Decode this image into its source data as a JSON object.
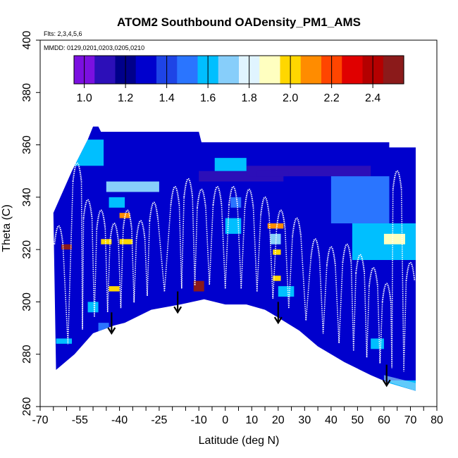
{
  "chart_data": {
    "type": "heatmap",
    "title": "ATOM2 Southbound OADensity_PM1_AMS",
    "subtitle_flights": "Flts: 2,3,4,5,6",
    "subtitle_dates": "MMDD: 0129,0201,0203,0205,0210",
    "xlabel": "Latitude (deg N)",
    "ylabel": "Theta (C)",
    "xlim": [
      -70,
      80
    ],
    "ylim": [
      260,
      400
    ],
    "x_ticks": [
      -70,
      -55,
      -40,
      -25,
      -10,
      0,
      10,
      20,
      30,
      40,
      50,
      60,
      70,
      80
    ],
    "x_minor_ticks": [
      -65,
      -60,
      -50,
      -45,
      -35,
      -30,
      -20,
      -15,
      -5,
      5,
      15,
      25,
      35,
      45,
      55,
      65,
      75
    ],
    "y_ticks": [
      260,
      280,
      300,
      320,
      340,
      360,
      380,
      400
    ],
    "colorbar": {
      "range": [
        0.95,
        2.55
      ],
      "ticks": [
        1.0,
        1.2,
        1.4,
        1.6,
        1.8,
        2.0,
        2.2,
        2.4
      ],
      "tick_labels": [
        "1.0",
        "1.2",
        "1.4",
        "1.6",
        "1.8",
        "2.0",
        "2.2",
        "2.4"
      ],
      "colors": [
        "#7b10e0",
        "#2c0fb8",
        "#00008b",
        "#0000cd",
        "#1e44e6",
        "#2a75ff",
        "#00bfff",
        "#87cefa",
        "#e0f4ff",
        "#ffffc0",
        "#ffd700",
        "#ff8c00",
        "#ff4500",
        "#e00000",
        "#b40000",
        "#8b1a1a"
      ]
    },
    "background_value": 1.25,
    "terrain_floor": [
      {
        "x": -64,
        "y": 274
      },
      {
        "x": -57,
        "y": 280
      },
      {
        "x": -50,
        "y": 288
      },
      {
        "x": -42,
        "y": 291
      },
      {
        "x": -38,
        "y": 292
      },
      {
        "x": -28,
        "y": 297
      },
      {
        "x": -17,
        "y": 299
      },
      {
        "x": -8,
        "y": 301
      },
      {
        "x": 0,
        "y": 299
      },
      {
        "x": 8,
        "y": 299
      },
      {
        "x": 15,
        "y": 297
      },
      {
        "x": 20,
        "y": 294
      },
      {
        "x": 28,
        "y": 289
      },
      {
        "x": 35,
        "y": 283
      },
      {
        "x": 45,
        "y": 277
      },
      {
        "x": 55,
        "y": 272
      },
      {
        "x": 62,
        "y": 269
      },
      {
        "x": 72,
        "y": 266
      }
    ],
    "data_ceiling": [
      {
        "x": -65,
        "y": 334
      },
      {
        "x": -58,
        "y": 350
      },
      {
        "x": -52,
        "y": 362
      },
      {
        "x": -50,
        "y": 367
      },
      {
        "x": -48,
        "y": 367
      },
      {
        "x": -47,
        "y": 365
      },
      {
        "x": -10,
        "y": 365
      },
      {
        "x": -9,
        "y": 361
      },
      {
        "x": 62,
        "y": 361
      },
      {
        "x": 62,
        "y": 359
      },
      {
        "x": 72,
        "y": 359
      },
      {
        "x": 72,
        "y": 268
      }
    ],
    "patches": [
      {
        "x0": -58,
        "x1": -46,
        "y0": 352,
        "y1": 362,
        "v": 1.6
      },
      {
        "x0": -45,
        "x1": -25,
        "y0": 342,
        "y1": 346,
        "v": 1.65
      },
      {
        "x0": -44,
        "x1": -38,
        "y0": 336,
        "y1": 340,
        "v": 1.55
      },
      {
        "x0": -40,
        "x1": -36,
        "y0": 332,
        "y1": 334,
        "v": 2.05
      },
      {
        "x0": -47,
        "x1": -43,
        "y0": 322,
        "y1": 324,
        "v": 2.0
      },
      {
        "x0": -40,
        "x1": -35,
        "y0": 322,
        "y1": 324,
        "v": 2.0
      },
      {
        "x0": -62,
        "x1": -58,
        "y0": 320,
        "y1": 322,
        "v": 2.5
      },
      {
        "x0": -44,
        "x1": -40,
        "y0": 304,
        "y1": 306,
        "v": 2.0
      },
      {
        "x0": -52,
        "x1": -48,
        "y0": 296,
        "y1": 300,
        "v": 1.55
      },
      {
        "x0": -48,
        "x1": -44,
        "y0": 288,
        "y1": 292,
        "v": 1.5
      },
      {
        "x0": -64,
        "x1": -58,
        "y0": 284,
        "y1": 286,
        "v": 1.6
      },
      {
        "x0": -12,
        "x1": -8,
        "y0": 304,
        "y1": 308,
        "v": 2.45
      },
      {
        "x0": -10,
        "x1": 22,
        "y0": 346,
        "y1": 350,
        "v": 1.15
      },
      {
        "x0": 8,
        "x1": 55,
        "y0": 348,
        "y1": 352,
        "v": 1.15
      },
      {
        "x0": -4,
        "x1": 8,
        "y0": 350,
        "y1": 355,
        "v": 1.55
      },
      {
        "x0": 12,
        "x1": 24,
        "y0": 348,
        "y1": 350,
        "v": 1.05
      },
      {
        "x0": 2,
        "x1": 6,
        "y0": 336,
        "y1": 340,
        "v": 1.5
      },
      {
        "x0": 0,
        "x1": 6,
        "y0": 326,
        "y1": 332,
        "v": 1.55
      },
      {
        "x0": 16,
        "x1": 22,
        "y0": 328,
        "y1": 330,
        "v": 2.1
      },
      {
        "x0": 17,
        "x1": 21,
        "y0": 322,
        "y1": 326,
        "v": 1.7
      },
      {
        "x0": 18,
        "x1": 21,
        "y0": 318,
        "y1": 320,
        "v": 2.0
      },
      {
        "x0": 18,
        "x1": 21,
        "y0": 308,
        "y1": 310,
        "v": 2.0
      },
      {
        "x0": 20,
        "x1": 26,
        "y0": 302,
        "y1": 306,
        "v": 1.6
      },
      {
        "x0": 40,
        "x1": 62,
        "y0": 330,
        "y1": 348,
        "v": 1.45
      },
      {
        "x0": 48,
        "x1": 72,
        "y0": 316,
        "y1": 330,
        "v": 1.55
      },
      {
        "x0": 60,
        "x1": 68,
        "y0": 322,
        "y1": 326,
        "v": 1.85
      },
      {
        "x0": 55,
        "x1": 60,
        "y0": 282,
        "y1": 286,
        "v": 1.55
      },
      {
        "x0": 62,
        "x1": 72,
        "y0": 266,
        "y1": 270,
        "v": 1.6
      }
    ],
    "flight_track_peaks": [
      {
        "x": -63,
        "y": 334
      },
      {
        "x": -56,
        "y": 358
      },
      {
        "x": -52,
        "y": 344
      },
      {
        "x": -47,
        "y": 340
      },
      {
        "x": -42,
        "y": 335
      },
      {
        "x": -37,
        "y": 340
      },
      {
        "x": -32,
        "y": 336
      },
      {
        "x": -27,
        "y": 343
      },
      {
        "x": -19,
        "y": 349
      },
      {
        "x": -14,
        "y": 352
      },
      {
        "x": -9,
        "y": 348
      },
      {
        "x": -3,
        "y": 349
      },
      {
        "x": 3,
        "y": 349
      },
      {
        "x": 9,
        "y": 348
      },
      {
        "x": 15,
        "y": 345
      },
      {
        "x": 21,
        "y": 340
      },
      {
        "x": 27,
        "y": 337
      },
      {
        "x": 34,
        "y": 329
      },
      {
        "x": 40,
        "y": 326
      },
      {
        "x": 46,
        "y": 327
      },
      {
        "x": 51,
        "y": 323
      },
      {
        "x": 56,
        "y": 318
      },
      {
        "x": 61,
        "y": 312
      },
      {
        "x": 65,
        "y": 355
      },
      {
        "x": 70,
        "y": 320
      }
    ],
    "arrows": [
      {
        "x": -43,
        "y_top": 296,
        "y_bottom": 288
      },
      {
        "x": -18,
        "y_top": 304,
        "y_bottom": 296
      },
      {
        "x": 20,
        "y_top": 300,
        "y_bottom": 292
      },
      {
        "x": 61,
        "y_top": 276,
        "y_bottom": 268
      }
    ]
  }
}
